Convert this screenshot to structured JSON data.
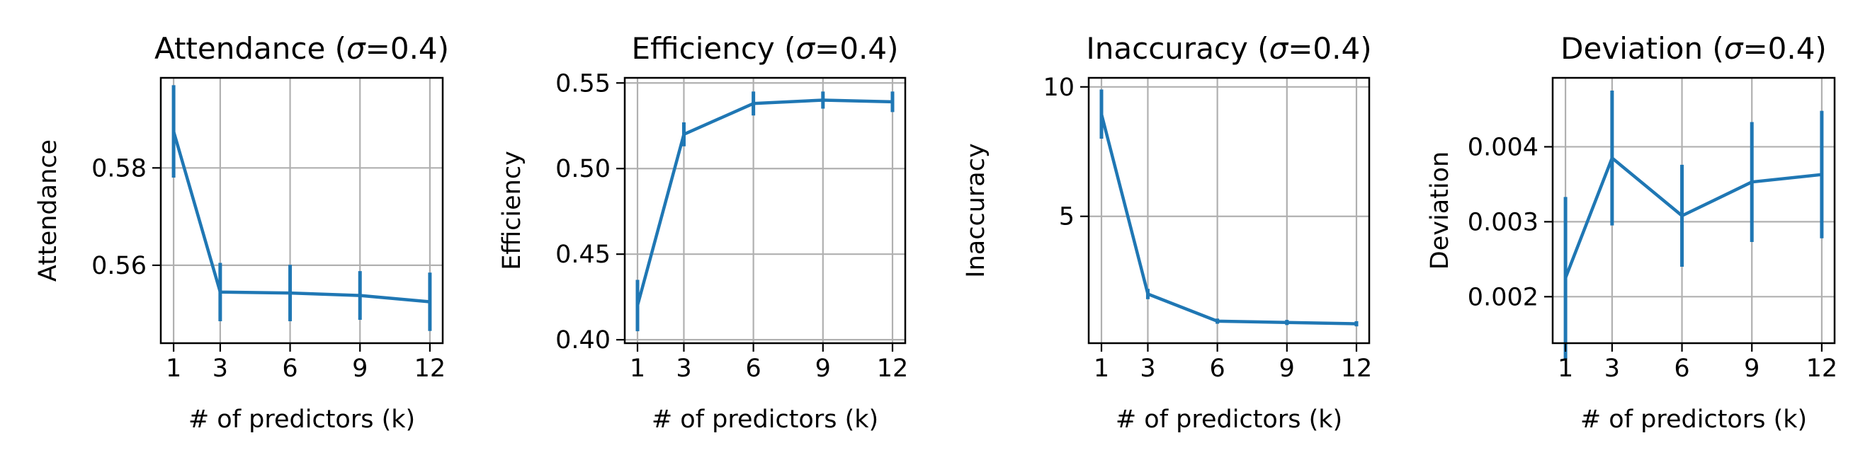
{
  "series_color": "#1f77b4",
  "chart_data": [
    {
      "type": "line",
      "title_prefix": "Attendance (",
      "title_sigma": "σ",
      "title_suffix": "=0.4)",
      "xlabel": "# of predictors (k)",
      "ylabel": "Attendance",
      "x": [
        1,
        3,
        6,
        9,
        12
      ],
      "y": [
        0.5875,
        0.5545,
        0.5543,
        0.5538,
        0.5525
      ],
      "err": [
        0.0095,
        0.006,
        0.0058,
        0.005,
        0.006
      ],
      "xticks": [
        1,
        3,
        6,
        9,
        12
      ],
      "xtick_labels": [
        "1",
        "3",
        "6",
        "9",
        "12"
      ],
      "yticks": [
        0.56,
        0.58
      ],
      "ytick_labels": [
        "0.56",
        "0.58"
      ],
      "xlim": [
        0.45,
        12.55
      ],
      "ylim": [
        0.544,
        0.5985
      ],
      "grid": true
    },
    {
      "type": "line",
      "title_prefix": "Efficiency (",
      "title_sigma": "σ",
      "title_suffix": "=0.4)",
      "xlabel": "# of predictors (k)",
      "ylabel": "Efficiency",
      "x": [
        1,
        3,
        6,
        9,
        12
      ],
      "y": [
        0.42,
        0.52,
        0.538,
        0.54,
        0.539
      ],
      "err": [
        0.015,
        0.007,
        0.007,
        0.005,
        0.006
      ],
      "xticks": [
        1,
        3,
        6,
        9,
        12
      ],
      "xtick_labels": [
        "1",
        "3",
        "6",
        "9",
        "12"
      ],
      "yticks": [
        0.4,
        0.45,
        0.5,
        0.55
      ],
      "ytick_labels": [
        "0.40",
        "0.45",
        "0.50",
        "0.55"
      ],
      "xlim": [
        0.45,
        12.55
      ],
      "ylim": [
        0.398,
        0.553
      ],
      "grid": true
    },
    {
      "type": "line",
      "title_prefix": "Inaccuracy (",
      "title_sigma": "σ",
      "title_suffix": "=0.4)",
      "xlabel": "# of predictors (k)",
      "ylabel": "Inaccuracy",
      "x": [
        1,
        3,
        6,
        9,
        12
      ],
      "y": [
        8.95,
        2.0,
        0.95,
        0.9,
        0.85
      ],
      "err": [
        0.95,
        0.2,
        0.1,
        0.1,
        0.1
      ],
      "xticks": [
        1,
        3,
        6,
        9,
        12
      ],
      "xtick_labels": [
        "1",
        "3",
        "6",
        "9",
        "12"
      ],
      "yticks": [
        5,
        10
      ],
      "ytick_labels": [
        "5",
        "10"
      ],
      "xlim": [
        0.45,
        12.55
      ],
      "ylim": [
        0.1,
        10.35
      ],
      "grid": true
    },
    {
      "type": "line",
      "title_prefix": "Deviation (",
      "title_sigma": "σ",
      "title_suffix": "=0.4)",
      "xlabel": "# of predictors (k)",
      "ylabel": "Deviation",
      "x": [
        1,
        3,
        6,
        9,
        12
      ],
      "y": [
        0.00225,
        0.00385,
        0.00308,
        0.00353,
        0.00363
      ],
      "err": [
        0.00108,
        0.0009,
        0.00068,
        0.0008,
        0.00085
      ],
      "xticks": [
        1,
        3,
        6,
        9,
        12
      ],
      "xtick_labels": [
        "1",
        "3",
        "6",
        "9",
        "12"
      ],
      "yticks": [
        0.002,
        0.003,
        0.004
      ],
      "ytick_labels": [
        "0.002",
        "0.003",
        "0.004"
      ],
      "xlim": [
        0.45,
        12.55
      ],
      "ylim": [
        0.00138,
        0.00492
      ],
      "grid": true
    }
  ]
}
